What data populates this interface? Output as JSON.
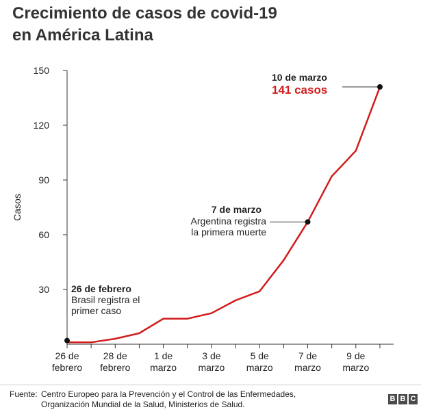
{
  "title": {
    "line1": "Crecimiento de casos de covid-19",
    "line2": "en América Latina"
  },
  "chart_data": {
    "type": "line",
    "ylabel": "Casos",
    "ylim": [
      0,
      150
    ],
    "yticks": [
      30,
      60,
      90,
      120,
      150
    ],
    "grid": false,
    "x": [
      "2020-02-26",
      "2020-02-27",
      "2020-02-28",
      "2020-02-29",
      "2020-03-01",
      "2020-03-02",
      "2020-03-03",
      "2020-03-04",
      "2020-03-05",
      "2020-03-06",
      "2020-03-07",
      "2020-03-08",
      "2020-03-09",
      "2020-03-10"
    ],
    "values": [
      1,
      1,
      3,
      6,
      14,
      14,
      17,
      24,
      29,
      46,
      67,
      92,
      106,
      141
    ],
    "xtick_labels": [
      {
        "date": "2020-02-26",
        "line1": "26 de",
        "line2": "febrero"
      },
      {
        "date": "2020-02-28",
        "line1": "28 de",
        "line2": "febrero"
      },
      {
        "date": "2020-03-01",
        "line1": "1 de",
        "line2": "marzo"
      },
      {
        "date": "2020-03-03",
        "line1": "3 de",
        "line2": "marzo"
      },
      {
        "date": "2020-03-05",
        "line1": "5 de",
        "line2": "marzo"
      },
      {
        "date": "2020-03-07",
        "line1": "7 de",
        "line2": "marzo"
      },
      {
        "date": "2020-03-09",
        "line1": "9 de",
        "line2": "marzo"
      }
    ],
    "line_color": "#d21b1b",
    "annotations": [
      {
        "date": "2020-02-26",
        "value": 2,
        "title": "26 de febrero",
        "lines": [
          "Brasil registra el",
          "primer caso"
        ]
      },
      {
        "date": "2020-03-07",
        "value": 67,
        "title": "7 de marzo",
        "lines": [
          "Argentina registra",
          "la primera muerte"
        ]
      },
      {
        "date": "2020-03-10",
        "value": 141,
        "title": "10 de marzo",
        "lines": [
          "141 casos"
        ],
        "highlight_color": "#d21b1b"
      }
    ]
  },
  "footer": {
    "source_label": "Fuente:",
    "source_line1": "Centro Europeo para la Prevención y el Control de las Enfermedades,",
    "source_line2": "Organización Mundial de la Salud, Ministerios de Salud.",
    "logo_letters": [
      "B",
      "B",
      "C"
    ]
  }
}
